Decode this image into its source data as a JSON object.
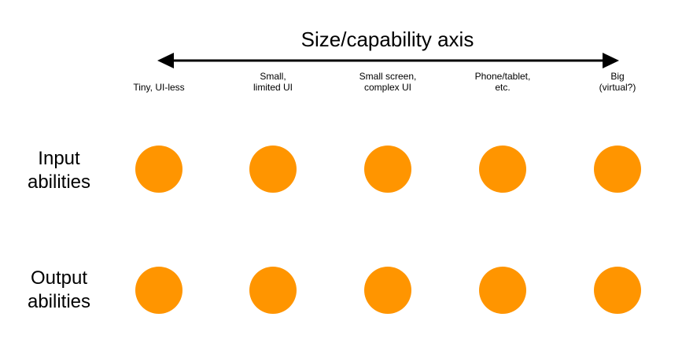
{
  "axis": {
    "title": "Size/capability axis"
  },
  "columns": [
    {
      "label": "Tiny, UI-less"
    },
    {
      "label": "Small,\nlimited UI"
    },
    {
      "label": "Small screen,\ncomplex UI"
    },
    {
      "label": "Phone/tablet,\netc."
    },
    {
      "label": "Big\n(virtual?)"
    }
  ],
  "rows": [
    {
      "label": "Input\nabilities"
    },
    {
      "label": "Output\nabilities"
    }
  ],
  "colors": {
    "dot": "#ff9500",
    "arrow": "#000000"
  }
}
